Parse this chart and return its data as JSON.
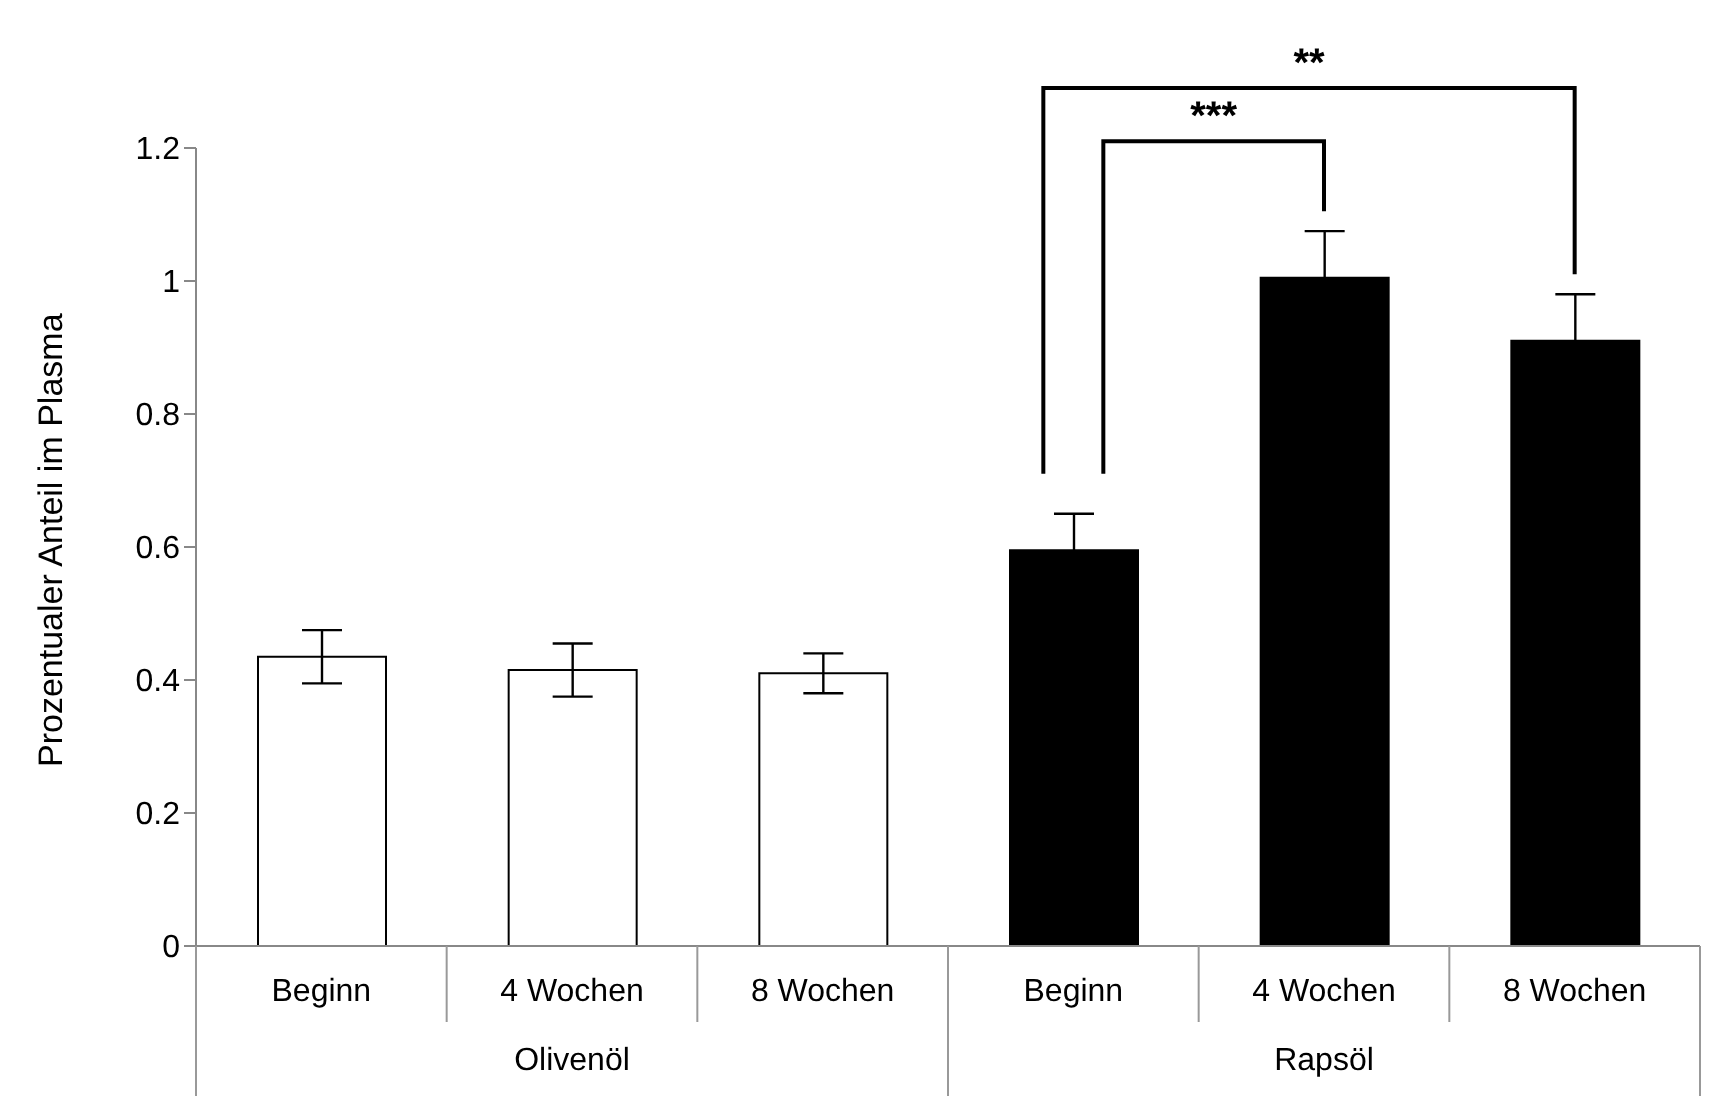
{
  "chart_data": {
    "type": "bar",
    "ylabel": "Prozentualer Anteil im Plasma",
    "categories": [
      "Beginn",
      "4 Wochen",
      "8 Wochen",
      "Beginn",
      "4 Wochen",
      "8 Wochen"
    ],
    "values": [
      0.435,
      0.415,
      0.41,
      0.595,
      1.005,
      0.91
    ],
    "errors": [
      0.04,
      0.04,
      0.03,
      0.055,
      0.07,
      0.07
    ],
    "colors": [
      "#ffffff",
      "#ffffff",
      "#ffffff",
      "#000000",
      "#000000",
      "#000000"
    ],
    "ylim": [
      0,
      1.2
    ],
    "yticks": [
      0,
      0.2,
      0.4,
      0.6,
      0.8,
      1,
      1.2
    ],
    "annotations": [
      "Olivenöl",
      "Rapsöl",
      "***",
      "**"
    ],
    "grid": false,
    "legend": false
  }
}
